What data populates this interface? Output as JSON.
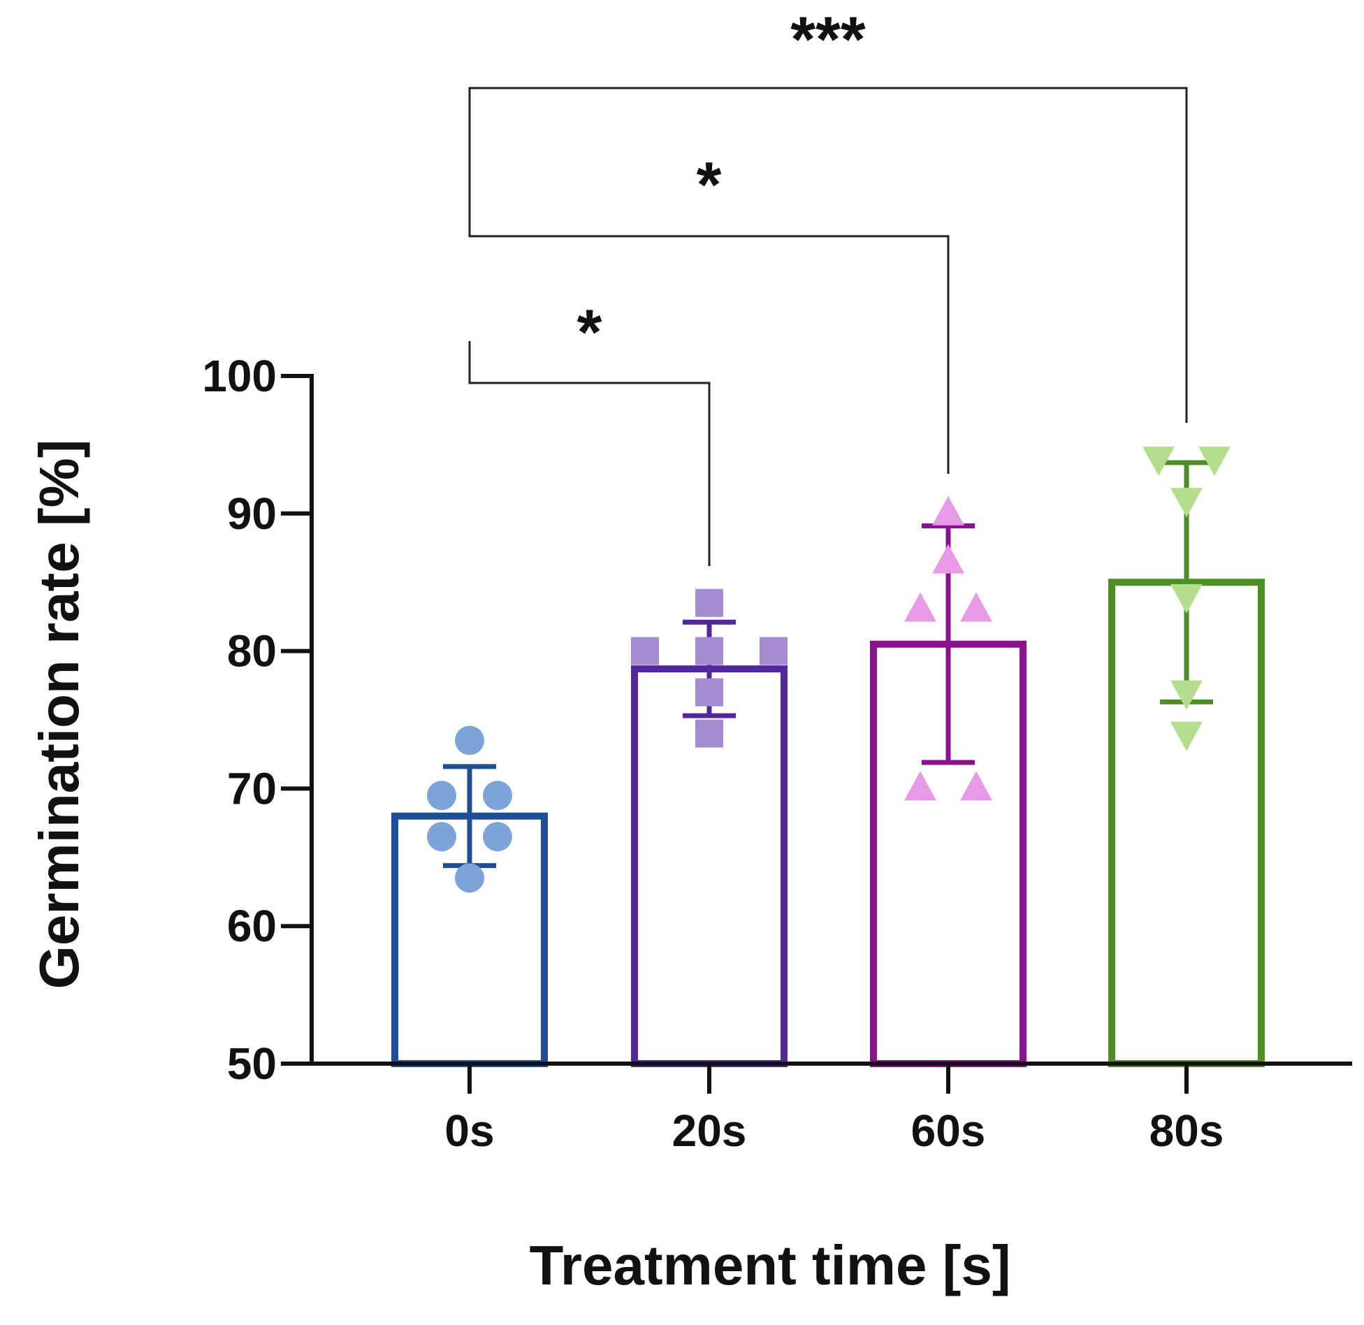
{
  "chart_data": {
    "type": "bar",
    "title": "",
    "xlabel": "Treatment time [s]",
    "ylabel": "Germination rate [%]",
    "ylim": [
      50,
      100
    ],
    "yticks": [
      50,
      60,
      70,
      80,
      90,
      100
    ],
    "categories": [
      "0s",
      "20s",
      "60s",
      "80s"
    ],
    "series": [
      {
        "name": "Germination rate",
        "values": [
          68,
          78.7,
          80.5,
          85
        ],
        "error": [
          3.6,
          3.4,
          8.6,
          8.7
        ],
        "colors": [
          "#1f4e96",
          "#50289a",
          "#8a128e",
          "#4e8e24"
        ],
        "point_colors": [
          "#7ea3d8",
          "#a68bd2",
          "#e79ae5",
          "#b5de8c"
        ],
        "markers": [
          "circle",
          "square",
          "triangle-up",
          "triangle-down"
        ],
        "points": [
          [
            73.5,
            69.5,
            69.5,
            66.5,
            66.5,
            63.5
          ],
          [
            83.5,
            80,
            80,
            80,
            77,
            74
          ],
          [
            90,
            86.5,
            83,
            83,
            70,
            70
          ],
          [
            94,
            94,
            91,
            84,
            77,
            74
          ]
        ]
      }
    ],
    "significance": [
      {
        "from": "0s",
        "to": "20s",
        "label": "*"
      },
      {
        "from": "0s",
        "to": "60s",
        "label": "*"
      },
      {
        "from": "0s",
        "to": "80s",
        "label": "***"
      }
    ]
  }
}
